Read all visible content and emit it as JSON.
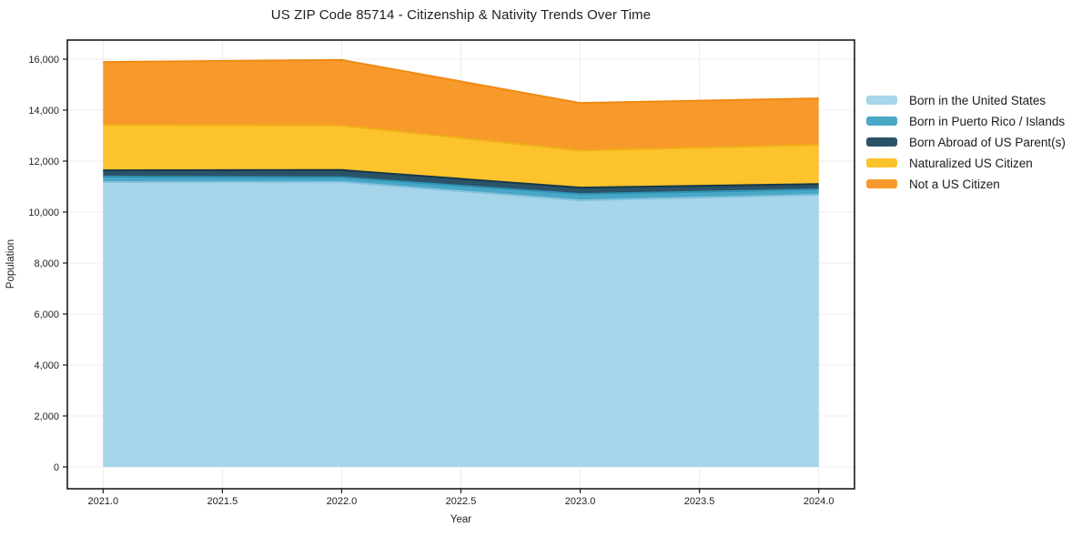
{
  "chart_data": {
    "type": "area",
    "stacked": true,
    "title": "US ZIP Code 85714 - Citizenship & Nativity Trends Over Time",
    "xlabel": "Year",
    "ylabel": "Population",
    "x": [
      2021,
      2022,
      2023,
      2024
    ],
    "series": [
      {
        "name": "Born in the United States",
        "values": [
          11180,
          11180,
          10460,
          10680
        ],
        "color": "#a7d5ea",
        "edge": "#85c2de"
      },
      {
        "name": "Born in Puerto Rico / Islands",
        "values": [
          210,
          180,
          250,
          210
        ],
        "color": "#48a8c6",
        "edge": "#2f93b4"
      },
      {
        "name": "Born Abroad of US Parent(s)",
        "values": [
          250,
          290,
          250,
          210
        ],
        "color": "#2b5368",
        "edge": "#16384a"
      },
      {
        "name": "Naturalized US Citizen",
        "values": [
          1790,
          1750,
          1460,
          1540
        ],
        "color": "#fdc32d",
        "edge": "#f0ad18"
      },
      {
        "name": "Not a US Citizen",
        "values": [
          2460,
          2570,
          1860,
          1820
        ],
        "color": "#f8992b",
        "edge": "#ef8a12"
      }
    ],
    "xlim": [
      2020.85,
      2024.15
    ],
    "ylim": [
      -857,
      16750
    ],
    "x_ticks": {
      "values": [
        2021,
        2021.5,
        2022,
        2022.5,
        2023,
        2023.5,
        2024
      ],
      "labels": [
        "2021.0",
        "2021.5",
        "2022.0",
        "2022.5",
        "2023.0",
        "2023.5",
        "2024.0"
      ]
    },
    "y_ticks": {
      "values": [
        0,
        2000,
        4000,
        6000,
        8000,
        10000,
        12000,
        14000,
        16000
      ],
      "labels": [
        "0",
        "2,000",
        "4,000",
        "6,000",
        "8,000",
        "10,000",
        "12,000",
        "14,000",
        "16,000"
      ]
    },
    "grid": true,
    "legend_position": "right",
    "colors": {
      "spine": "#1a1a1a",
      "grid": "#ececec",
      "tick_text": "#1f1f1f"
    }
  }
}
